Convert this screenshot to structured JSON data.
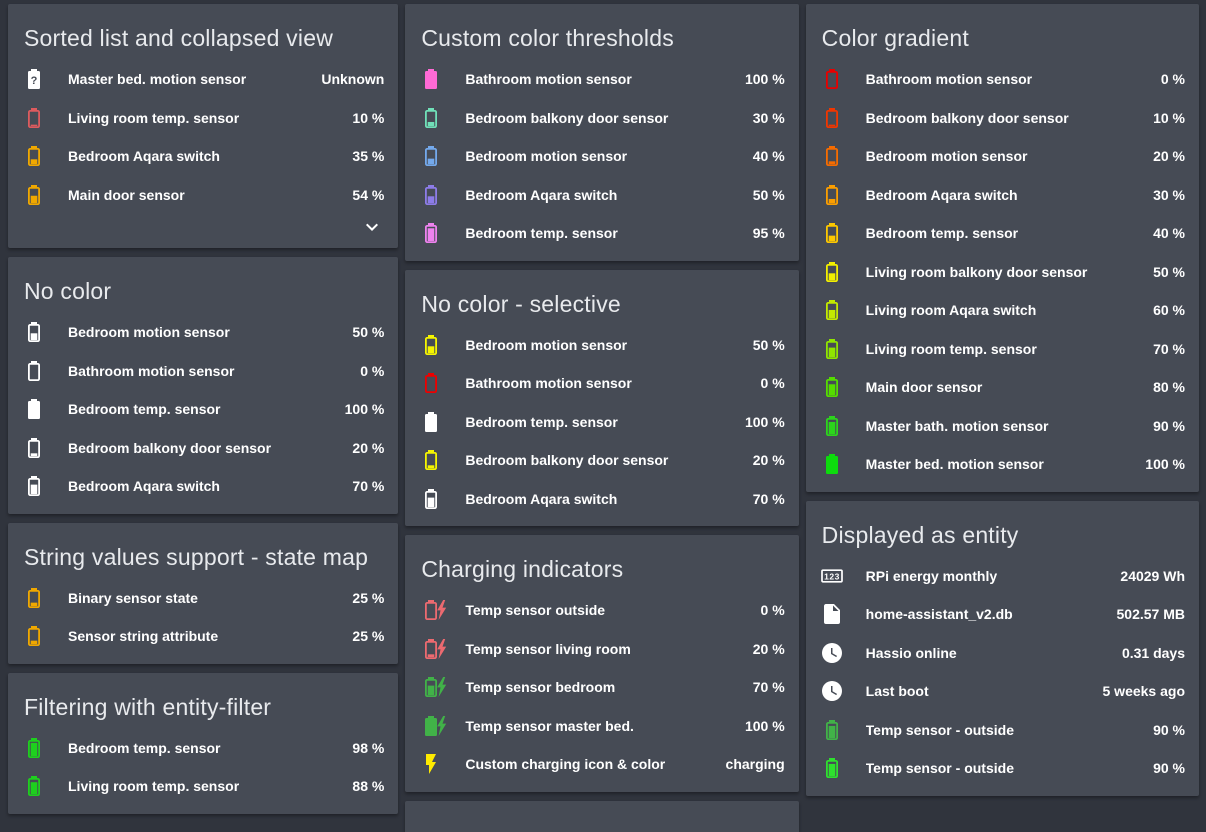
{
  "theme": {
    "page_bg": "#30343d",
    "card_bg": "#464b55",
    "title_color": "#e8eaed",
    "text_color": "#ffffff"
  },
  "columns": [
    {
      "cards": [
        {
          "title": "Sorted list and collapsed view",
          "collapse": true,
          "items": [
            {
              "name": "Master bed. motion sensor",
              "value": "Unknown",
              "icon": "battery-unknown",
              "level": 100,
              "color": "#ffffff"
            },
            {
              "name": "Living room temp. sensor",
              "value": "10 %",
              "icon": "battery",
              "level": 10,
              "color": "#dd5b5e"
            },
            {
              "name": "Bedroom Aqara switch",
              "value": "35 %",
              "icon": "battery",
              "level": 35,
              "color": "#f0a800"
            },
            {
              "name": "Main door sensor",
              "value": "54 %",
              "icon": "battery",
              "level": 54,
              "color": "#f0a800"
            }
          ]
        },
        {
          "title": "No color",
          "items": [
            {
              "name": "Bedroom motion sensor",
              "value": "50 %",
              "icon": "battery",
              "level": 50,
              "color": "#ffffff"
            },
            {
              "name": "Bathroom motion sensor",
              "value": "0 %",
              "icon": "battery",
              "level": 0,
              "color": "#ffffff"
            },
            {
              "name": "Bedroom temp. sensor",
              "value": "100 %",
              "icon": "battery",
              "level": 100,
              "color": "#ffffff"
            },
            {
              "name": "Bedroom balkony door sensor",
              "value": "20 %",
              "icon": "battery",
              "level": 20,
              "color": "#ffffff"
            },
            {
              "name": "Bedroom Aqara switch",
              "value": "70 %",
              "icon": "battery",
              "level": 70,
              "color": "#ffffff"
            }
          ]
        },
        {
          "title": "String values support - state map",
          "items": [
            {
              "name": "Binary sensor state",
              "value": "25 %",
              "icon": "battery",
              "level": 25,
              "color": "#f0a800"
            },
            {
              "name": "Sensor string attribute",
              "value": "25 %",
              "icon": "battery",
              "level": 25,
              "color": "#f0a800"
            }
          ]
        },
        {
          "title": "Filtering with entity-filter",
          "items": [
            {
              "name": "Bedroom temp. sensor",
              "value": "98 %",
              "icon": "battery",
              "level": 98,
              "color": "#1ed01e"
            },
            {
              "name": "Living room temp. sensor",
              "value": "88 %",
              "icon": "battery",
              "level": 88,
              "color": "#1ed01e"
            }
          ]
        }
      ]
    },
    {
      "cards": [
        {
          "title": "Custom color thresholds",
          "items": [
            {
              "name": "Bathroom motion sensor",
              "value": "100 %",
              "icon": "battery",
              "level": 100,
              "color": "#ff6ad5"
            },
            {
              "name": "Bedroom balkony door sensor",
              "value": "30 %",
              "icon": "battery",
              "level": 30,
              "color": "#70e0b8"
            },
            {
              "name": "Bedroom motion sensor",
              "value": "40 %",
              "icon": "battery",
              "level": 40,
              "color": "#74a9ec"
            },
            {
              "name": "Bedroom Aqara switch",
              "value": "50 %",
              "icon": "battery",
              "level": 50,
              "color": "#8d7ce8"
            },
            {
              "name": "Bedroom temp. sensor",
              "value": "95 %",
              "icon": "battery",
              "level": 95,
              "color": "#ee82ee"
            }
          ]
        },
        {
          "title": "No color - selective",
          "items": [
            {
              "name": "Bedroom motion sensor",
              "value": "50 %",
              "icon": "battery",
              "level": 50,
              "color": "#f5f500"
            },
            {
              "name": "Bathroom motion sensor",
              "value": "0 %",
              "icon": "battery",
              "level": 0,
              "color": "#ee0000"
            },
            {
              "name": "Bedroom temp. sensor",
              "value": "100 %",
              "icon": "battery",
              "level": 100,
              "color": "#ffffff"
            },
            {
              "name": "Bedroom balkony door sensor",
              "value": "20 %",
              "icon": "battery",
              "level": 20,
              "color": "#f5f500"
            },
            {
              "name": "Bedroom Aqara switch",
              "value": "70 %",
              "icon": "battery",
              "level": 70,
              "color": "#ffffff"
            }
          ]
        },
        {
          "title": "Charging indicators",
          "items": [
            {
              "name": "Temp sensor outside",
              "value": "0 %",
              "icon": "battery-charging",
              "level": 0,
              "color": "#ec6a70"
            },
            {
              "name": "Temp sensor living room",
              "value": "20 %",
              "icon": "battery-charging",
              "level": 20,
              "color": "#ec6a70"
            },
            {
              "name": "Temp sensor bedroom",
              "value": "70 %",
              "icon": "battery-charging",
              "level": 70,
              "color": "#41b248"
            },
            {
              "name": "Temp sensor master bed.",
              "value": "100 %",
              "icon": "battery-charging",
              "level": 100,
              "color": "#41b248"
            },
            {
              "name": "Custom charging icon & color",
              "value": "charging",
              "icon": "flash",
              "level": null,
              "color": "#ffeb00"
            }
          ]
        },
        {
          "title": "",
          "partial": true,
          "items": []
        }
      ]
    },
    {
      "cards": [
        {
          "title": "Color gradient",
          "items": [
            {
              "name": "Bathroom motion sensor",
              "value": "0 %",
              "icon": "battery",
              "level": 0,
              "color": "#e80000"
            },
            {
              "name": "Bedroom balkony door sensor",
              "value": "10 %",
              "icon": "battery",
              "level": 10,
              "color": "#f13600"
            },
            {
              "name": "Bedroom motion sensor",
              "value": "20 %",
              "icon": "battery",
              "level": 20,
              "color": "#f66c00"
            },
            {
              "name": "Bedroom Aqara switch",
              "value": "30 %",
              "icon": "battery",
              "level": 30,
              "color": "#fb9e00"
            },
            {
              "name": "Bedroom temp. sensor",
              "value": "40 %",
              "icon": "battery",
              "level": 40,
              "color": "#fdc800"
            },
            {
              "name": "Living room balkony door sensor",
              "value": "50 %",
              "icon": "battery",
              "level": 50,
              "color": "#f2ef00"
            },
            {
              "name": "Living room Aqara switch",
              "value": "60 %",
              "icon": "battery",
              "level": 60,
              "color": "#c3ea00"
            },
            {
              "name": "Living room temp. sensor",
              "value": "70 %",
              "icon": "battery",
              "level": 70,
              "color": "#8fe500"
            },
            {
              "name": "Main door sensor",
              "value": "80 %",
              "icon": "battery",
              "level": 80,
              "color": "#55dd00"
            },
            {
              "name": "Master bath. motion sensor",
              "value": "90 %",
              "icon": "battery",
              "level": 90,
              "color": "#2cd51c"
            },
            {
              "name": "Master bed. motion sensor",
              "value": "100 %",
              "icon": "battery",
              "level": 100,
              "color": "#0ddb0d"
            }
          ]
        },
        {
          "title": "Displayed as entity",
          "items": [
            {
              "name": "RPi energy monthly",
              "value": "24029 Wh",
              "icon": "counter",
              "level": null,
              "color": "#ffffff"
            },
            {
              "name": "home-assistant_v2.db",
              "value": "502.57 MB",
              "icon": "file",
              "level": null,
              "color": "#ffffff"
            },
            {
              "name": "Hassio online",
              "value": "0.31 days",
              "icon": "clock",
              "level": null,
              "color": "#ffffff"
            },
            {
              "name": "Last boot",
              "value": "5 weeks ago",
              "icon": "clock",
              "level": null,
              "color": "#ffffff"
            },
            {
              "name": "Temp sensor - outside",
              "value": "90 %",
              "icon": "battery",
              "level": 90,
              "color": "#41b248"
            },
            {
              "name": "Temp sensor - outside",
              "value": "90 %",
              "icon": "battery",
              "level": 90,
              "color": "#2ee02e"
            }
          ]
        }
      ]
    }
  ]
}
